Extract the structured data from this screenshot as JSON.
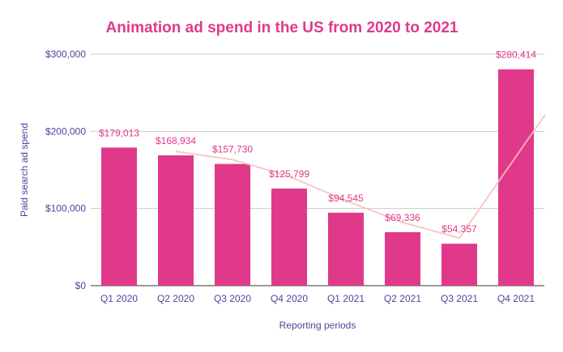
{
  "chart_data": {
    "type": "bar",
    "title": "Animation ad spend in the US from 2020 to 2021",
    "xlabel": "Reporting periods",
    "ylabel": "Paid search ad spend",
    "ylim": [
      0,
      300000
    ],
    "yticks": [
      0,
      100000,
      200000,
      300000
    ],
    "ytick_labels": [
      "$0",
      "$100,000",
      "$200,000",
      "$300,000"
    ],
    "grid": true,
    "categories": [
      "Q1 2020",
      "Q2 2020",
      "Q3 2020",
      "Q4 2020",
      "Q1 2021",
      "Q2 2021",
      "Q3 2021",
      "Q4 2021"
    ],
    "values": [
      179013,
      168934,
      157730,
      125799,
      94545,
      69336,
      54357,
      280414
    ],
    "data_labels": [
      "$179,013",
      "$168,934",
      "$157,730",
      "$125,799",
      "$94,545",
      "$69,336",
      "$54,357",
      "$280,414"
    ],
    "trendline": {
      "type": "moving-average",
      "values": [
        null,
        173974,
        163332,
        141765,
        110172,
        81941,
        61847,
        167386
      ]
    },
    "colors": {
      "bar": "#e0398a",
      "title": "#e0398a",
      "labels": "#e0398a",
      "axis_text": "#5a3d9e",
      "trendline": "#f3c2bb",
      "grid": "#cccccc"
    }
  }
}
